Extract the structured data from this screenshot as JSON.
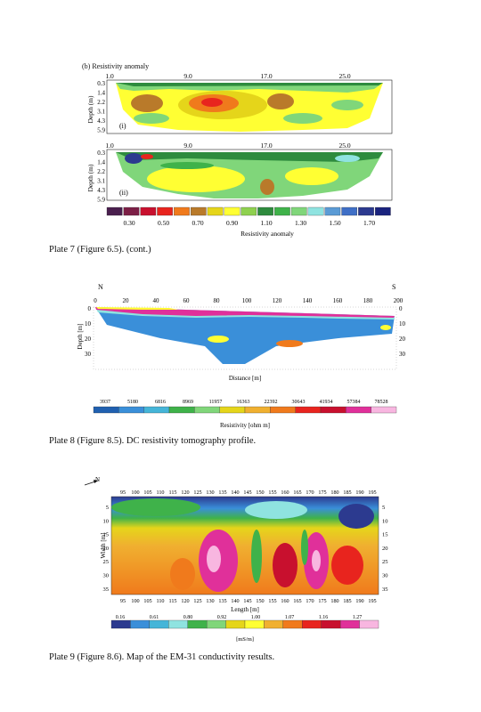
{
  "plate7": {
    "section_title": "(b) Resistivity anomaly",
    "x_ticks": [
      "1.0",
      "9.0",
      "17.0",
      "25.0"
    ],
    "y_ticks": [
      "0.3",
      "1.4",
      "2.2",
      "3.1",
      "4.3",
      "5.9"
    ],
    "ylabel": "Depth (m)",
    "panel_labels": [
      "(i)",
      "(ii)"
    ],
    "legend_ticks": [
      "0.30",
      "0.50",
      "0.70",
      "0.90",
      "1.10",
      "1.30",
      "1.50",
      "1.70"
    ],
    "legend_title": "Resistivity anomaly",
    "legend_colors": [
      "#4a1f4e",
      "#7c1f46",
      "#c8102e",
      "#e8241e",
      "#f07a1c",
      "#b97a2a",
      "#e5d51a",
      "#ffff33",
      "#8fd14f",
      "#2e8b3e",
      "#3fb24a",
      "#80d67a",
      "#8fe3e0",
      "#5b9bd5",
      "#3f6fc6",
      "#2c3a8f",
      "#1a237e"
    ],
    "caption": "Plate 7 (Figure 6.5). (cont.)"
  },
  "plate8": {
    "compass_left": "N",
    "compass_right": "S",
    "x_ticks": [
      "0",
      "20",
      "40",
      "60",
      "80",
      "100",
      "120",
      "140",
      "160",
      "180",
      "200"
    ],
    "y_ticks_left": [
      "0",
      "10",
      "20",
      "30"
    ],
    "y_ticks_right": [
      "0",
      "10",
      "20",
      "30"
    ],
    "ylabel": "Depth [m]",
    "xlabel": "Distance [m]",
    "legend_ticks": [
      "3937",
      "5180",
      "6816",
      "8969",
      "11957",
      "16363",
      "22392",
      "30643",
      "41934",
      "57384",
      "78528"
    ],
    "legend_title": "Resistivity [ohm m]",
    "caption": "Plate 8 (Figure 8.5). DC resistivity tomography profile."
  },
  "plate9": {
    "north_label": "N",
    "x_ticks": [
      "95",
      "100",
      "105",
      "110",
      "115",
      "120",
      "125",
      "130",
      "135",
      "140",
      "145",
      "150",
      "155",
      "160",
      "165",
      "170",
      "175",
      "180",
      "185",
      "190",
      "195"
    ],
    "y_ticks": [
      "5",
      "10",
      "15",
      "20",
      "25",
      "30",
      "35"
    ],
    "ylabel": "Width [m]",
    "xlabel": "Length [m]",
    "legend_ticks": [
      "0.16",
      "0.61",
      "0.80",
      "0.92",
      "1.00",
      "1.07",
      "1.16",
      "1.27"
    ],
    "legend_unit": "[mS/m]",
    "caption": "Plate 9 (Figure 8.6). Map of the EM-31 conductivity results."
  }
}
